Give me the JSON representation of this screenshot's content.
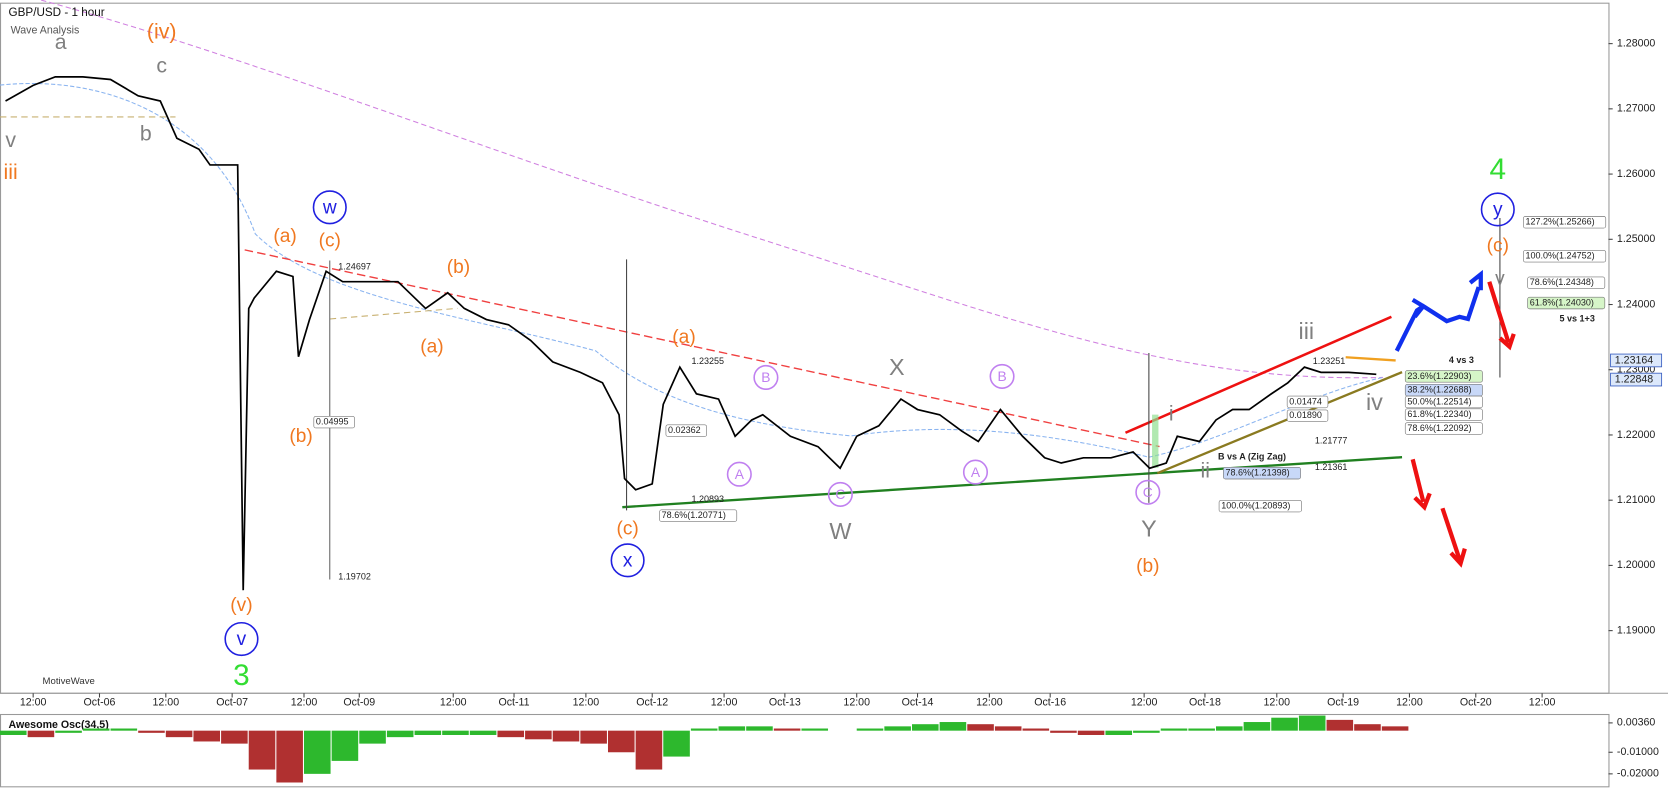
{
  "chart_data": [
    {
      "type": "line",
      "title": "GBP/USD - 1 hour",
      "subtitle": "Wave Analysis",
      "watermark": "MotiveWave",
      "color": "#000000",
      "x": [
        1,
        6,
        10,
        15,
        20,
        25,
        29,
        32,
        36,
        38,
        43,
        44,
        45,
        46,
        50,
        53,
        54,
        56,
        59,
        62,
        66,
        72,
        77,
        81,
        84,
        88,
        92,
        96,
        100,
        105,
        109,
        112,
        113,
        115,
        118,
        120,
        123,
        126,
        130,
        133,
        136,
        138,
        143,
        148,
        152,
        155,
        159,
        163,
        166,
        170,
        174,
        177,
        181,
        185,
        189,
        192,
        196,
        201,
        205,
        208,
        211,
        213,
        217,
        220,
        223,
        226,
        230,
        233,
        236,
        239,
        244,
        249
      ],
      "values": [
        1.2712,
        1.2736,
        1.2749,
        1.2749,
        1.2745,
        1.272,
        1.2712,
        1.2655,
        1.2638,
        1.2614,
        1.2614,
        1.1962,
        1.2394,
        1.241,
        1.2451,
        1.2443,
        1.232,
        1.2377,
        1.2451,
        1.2435,
        1.2435,
        1.2435,
        1.2394,
        1.2418,
        1.2394,
        1.2377,
        1.2369,
        1.2345,
        1.2312,
        1.2296,
        1.228,
        1.2231,
        1.2133,
        1.2116,
        1.2125,
        1.2247,
        1.2304,
        1.2263,
        1.2255,
        1.2198,
        1.2223,
        1.2231,
        1.2198,
        1.2182,
        1.2149,
        1.2198,
        1.2214,
        1.2255,
        1.2239,
        1.2231,
        1.2206,
        1.219,
        1.2239,
        1.2198,
        1.2165,
        1.2157,
        1.2165,
        1.2165,
        1.2174,
        1.2149,
        1.2157,
        1.2198,
        1.219,
        1.2223,
        1.2239,
        1.2239,
        1.2263,
        1.228,
        1.2304,
        1.2296,
        1.2296,
        1.2293
      ],
      "xlim": [
        0,
        291
      ],
      "ylim": [
        1.1804,
        1.2862
      ],
      "xticks": [
        {
          "value": 6,
          "label": "12:00"
        },
        {
          "value": 18,
          "label": "Oct-06"
        },
        {
          "value": 30,
          "label": "12:00"
        },
        {
          "value": 42,
          "label": "Oct-07"
        },
        {
          "value": 55,
          "label": "12:00"
        },
        {
          "value": 65,
          "label": "Oct-09"
        },
        {
          "value": 82,
          "label": "12:00"
        },
        {
          "value": 93,
          "label": "Oct-11"
        },
        {
          "value": 106,
          "label": "12:00"
        },
        {
          "value": 118,
          "label": "Oct-12"
        },
        {
          "value": 131,
          "label": "12:00"
        },
        {
          "value": 142,
          "label": "Oct-13"
        },
        {
          "value": 155,
          "label": "12:00"
        },
        {
          "value": 166,
          "label": "Oct-14"
        },
        {
          "value": 179,
          "label": "12:00"
        },
        {
          "value": 190,
          "label": "Oct-16"
        },
        {
          "value": 207,
          "label": "12:00"
        },
        {
          "value": 218,
          "label": "Oct-18"
        },
        {
          "value": 231,
          "label": "12:00"
        },
        {
          "value": 243,
          "label": "Oct-19"
        },
        {
          "value": 255,
          "label": "12:00"
        },
        {
          "value": 267,
          "label": "Oct-20"
        },
        {
          "value": 279,
          "label": "12:00"
        }
      ],
      "yticks": [
        {
          "value": 1.19,
          "label": "1.19000"
        },
        {
          "value": 1.2,
          "label": "1.20000"
        },
        {
          "value": 1.21,
          "label": "1.21000"
        },
        {
          "value": 1.22,
          "label": "1.22000"
        },
        {
          "value": 1.23,
          "label": "1.23000"
        },
        {
          "value": 1.24,
          "label": "1.24000"
        },
        {
          "value": 1.25,
          "label": "1.25000"
        },
        {
          "value": 1.26,
          "label": "1.26000"
        },
        {
          "value": 1.27,
          "label": "1.27000"
        },
        {
          "value": 1.28,
          "label": "1.28000"
        }
      ],
      "annotations": [
        {
          "text": "a",
          "color": "#808080"
        },
        {
          "text": "(iv)",
          "color": "#f07820"
        },
        {
          "text": "c",
          "color": "#808080"
        },
        {
          "text": "b",
          "color": "#808080"
        },
        {
          "text": "v",
          "color": "#808080"
        },
        {
          "text": "iii",
          "color": "#f07820"
        },
        {
          "text": "(a)",
          "color": "#f07820"
        },
        {
          "text": "(c)",
          "color": "#f07820"
        },
        {
          "text": "w",
          "color": "#2020e0"
        },
        {
          "text": "(b)",
          "color": "#f07820"
        },
        {
          "text": "(b)",
          "color": "#f07820"
        },
        {
          "text": "(a)",
          "color": "#f07820"
        },
        {
          "text": "(v)",
          "color": "#f07820"
        },
        {
          "text": "v",
          "color": "#2020e0"
        },
        {
          "text": "3",
          "color": "#33dd33"
        },
        {
          "text": "(a)",
          "color": "#f07820"
        },
        {
          "text": "(c)",
          "color": "#f07820"
        },
        {
          "text": "x",
          "color": "#2020e0"
        },
        {
          "text": "B",
          "color": "#c080f0"
        },
        {
          "text": "A",
          "color": "#c080f0"
        },
        {
          "text": "C",
          "color": "#c080f0"
        },
        {
          "text": "W",
          "color": "#808080"
        },
        {
          "text": "X",
          "color": "#808080"
        },
        {
          "text": "B",
          "color": "#c080f0"
        },
        {
          "text": "A",
          "color": "#c080f0"
        },
        {
          "text": "C",
          "color": "#c080f0"
        },
        {
          "text": "Y",
          "color": "#808080"
        },
        {
          "text": "(b)",
          "color": "#f07820"
        },
        {
          "text": "i",
          "color": "#808080"
        },
        {
          "text": "ii",
          "color": "#808080"
        },
        {
          "text": "iii",
          "color": "#808080"
        },
        {
          "text": "iv",
          "color": "#808080"
        },
        {
          "text": "4",
          "color": "#33dd33"
        },
        {
          "text": "y",
          "color": "#2020e0"
        },
        {
          "text": "(c)",
          "color": "#f07820"
        },
        {
          "text": "v",
          "color": "#808080"
        }
      ],
      "levels": [
        "1.24697",
        "0.04995",
        "1.19702",
        "0.02362",
        "1.23255",
        "1.20893",
        "78.6%(1.20771)",
        "100.0%(1.20893)",
        "78.6%(1.21398)",
        "B vs A (Zig Zag)",
        "1.23251",
        "0.01474",
        "0.01890",
        "1.21777",
        "1.21361",
        "4 vs 3",
        "23.6%(1.22903)",
        "38.2%(1.22688)",
        "50.0%(1.22514)",
        "61.8%(1.22340)",
        "78.6%(1.22092)",
        "127.2%(1.25266)",
        "100.0%(1.24752)",
        "78.6%(1.24348)",
        "61.8%(1.24030)",
        "5 vs 1+3"
      ],
      "price_labels": [
        "1.23164",
        "1.22848"
      ]
    },
    {
      "type": "bar",
      "title": "Awesome Osc(34,5)",
      "up_color": "#2db82d",
      "down_color": "#b03030",
      "x": [
        0,
        5,
        10,
        15,
        20,
        25,
        30,
        35,
        40,
        45,
        50,
        55,
        60,
        65,
        70,
        75,
        80,
        85,
        90,
        95,
        100,
        105,
        110,
        115,
        120,
        125,
        130,
        135,
        140,
        145,
        150,
        155,
        160,
        165,
        170,
        175,
        180,
        185,
        190,
        195,
        200,
        205,
        210,
        215,
        220,
        225,
        230,
        235,
        240,
        245,
        250
      ],
      "values": [
        -0.002,
        -0.003,
        -0.001,
        0.001,
        0.001,
        -0.001,
        -0.003,
        -0.005,
        -0.006,
        -0.018,
        -0.024,
        -0.02,
        -0.014,
        -0.006,
        -0.003,
        -0.002,
        -0.002,
        -0.002,
        -0.003,
        -0.004,
        -0.005,
        -0.006,
        -0.01,
        -0.018,
        -0.012,
        0.001,
        0.002,
        0.002,
        0.001,
        0.001,
        0,
        0.001,
        0.002,
        0.003,
        0.004,
        0.003,
        0.002,
        0.001,
        -0.001,
        -0.002,
        -0.002,
        -0.001,
        0.001,
        0.001,
        0.002,
        0.004,
        0.006,
        0.007,
        0.005,
        0.003,
        0.002
      ],
      "xlim": [
        0,
        291
      ],
      "ylim": [
        -0.026,
        0.0065
      ],
      "yticks": [
        {
          "value": 0.0036,
          "label": "0.00360"
        },
        {
          "value": -0.01,
          "label": "-0.01000"
        },
        {
          "value": -0.02,
          "label": "-0.02000"
        }
      ]
    }
  ]
}
